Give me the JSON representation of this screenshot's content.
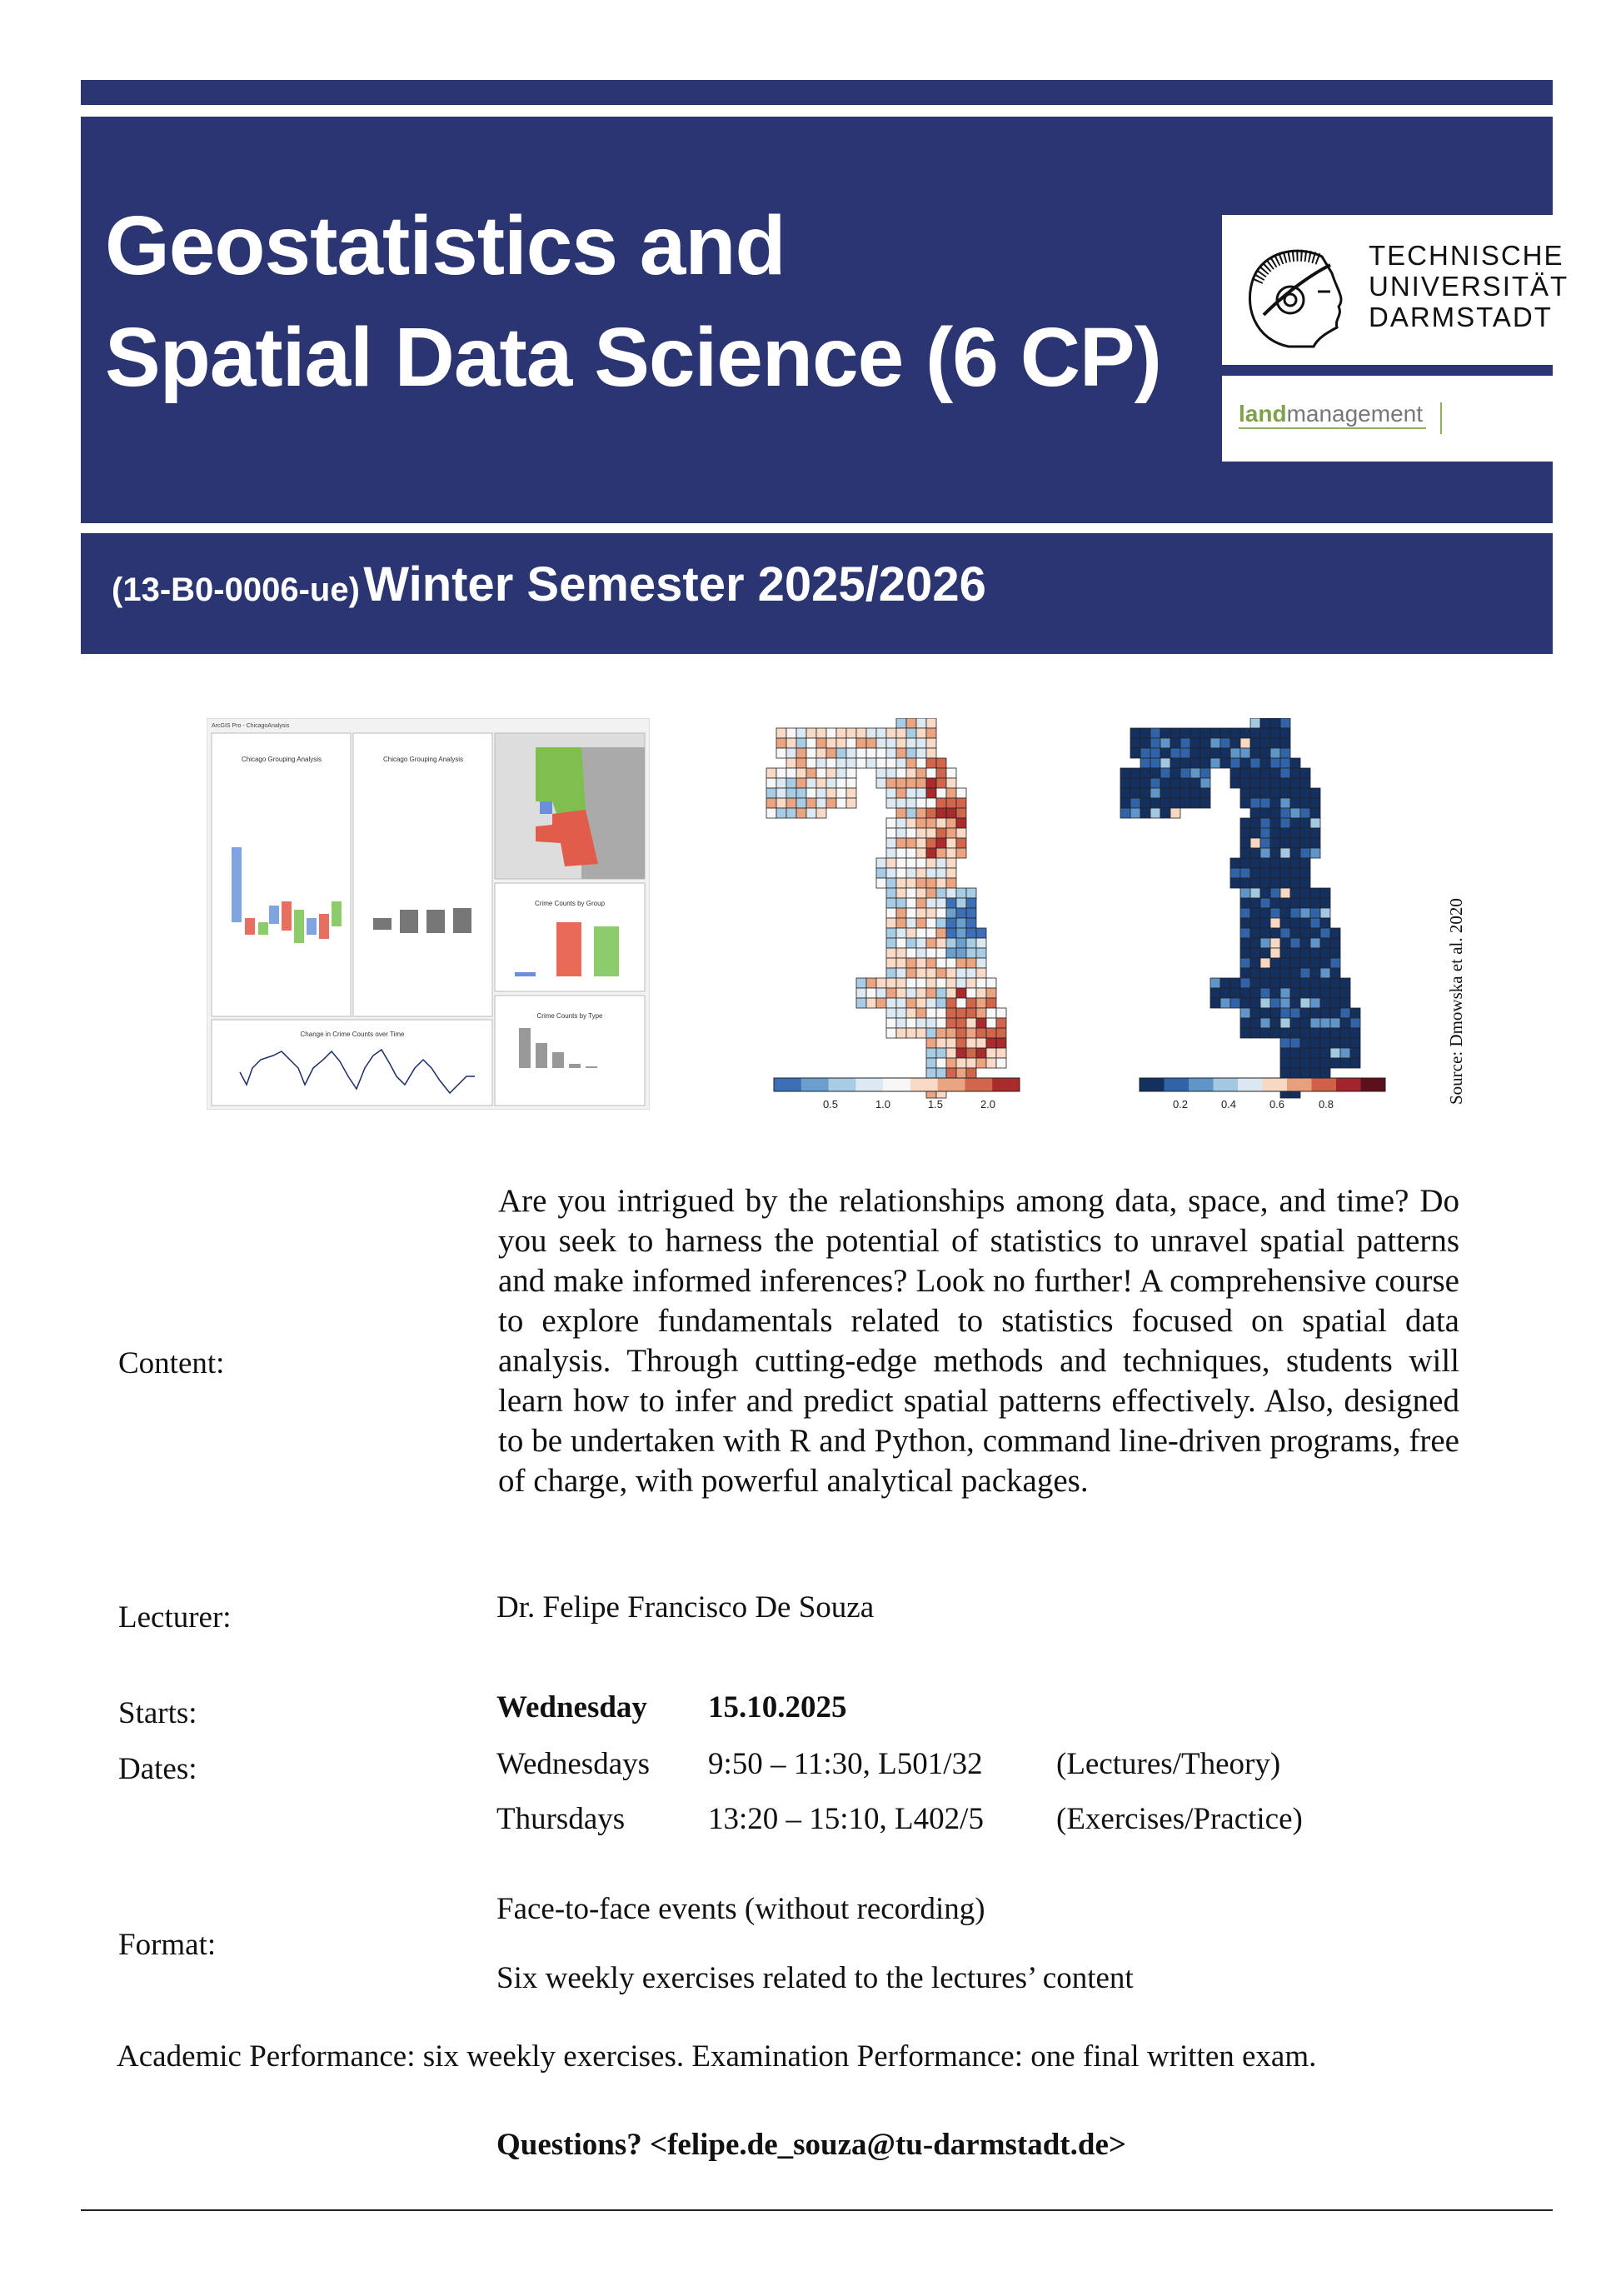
{
  "header": {
    "title_line1": "Geostatistics and",
    "title_line2": "Spatial Data Science (6 CP)",
    "course_code": "(13-B0-0006-ue)",
    "semester": "Winter Semester 2025/2026",
    "brand_color": "#2a3572"
  },
  "logos": {
    "university": [
      "TECHNISCHE",
      "UNIVERSITÄT",
      "DARMSTADT"
    ],
    "department_bold": "land",
    "department_rest": "management"
  },
  "figures": {
    "dashboard": {
      "window_title": "ArcGIS Pro - ChicagoAnalysis",
      "panel_titles": [
        "Chicago Grouping Analysis",
        "Chicago Grouping Analysis",
        "Crime Counts by Group",
        "Crime Counts by Type",
        "Change in Crime Counts over Time"
      ]
    },
    "map1_colorbar_ticks": [
      "0.5",
      "1.0",
      "1.5",
      "2.0"
    ],
    "map2_colorbar_ticks": [
      "0.2",
      "0.4",
      "0.6",
      "0.8"
    ],
    "source": "Source: Dmowska et al. 2020"
  },
  "content": {
    "label": "Content:",
    "text": "Are you intrigued by the relationships among data, space, and time? Do you seek to harness the potential of statistics to unravel spatial patterns and make informed inferences? Look no further! A comprehensive course to explore fundamentals related to statistics focused on spatial data analysis. Through cutting-edge methods and techniques, students will learn how to infer and predict spatial patterns effectively. Also, designed to be undertaken with R and Python, command line-driven programs, free of charge, with powerful analytical packages."
  },
  "lecturer": {
    "label": "Lecturer:",
    "name": "Dr. Felipe Francisco De Souza"
  },
  "starts": {
    "label": "Starts:",
    "day": "Wednesday",
    "date": "15.10.2025"
  },
  "dates": {
    "label": "Dates:",
    "rows": [
      {
        "day": "Wednesdays",
        "time": "9:50 – 11:30, L501/32",
        "type": "(Lectures/Theory)"
      },
      {
        "day": "Thursdays",
        "time": "13:20 – 15:10, L402/5",
        "type": "(Exercises/Practice)"
      }
    ]
  },
  "format": {
    "label": "Format:",
    "lines": [
      "Face-to-face events (without recording)",
      "Six weekly exercises related to the lectures’ content"
    ]
  },
  "performance": "Academic Performance: six weekly exercises. Examination Performance: one final written exam.",
  "questions": {
    "prefix": "Questions?",
    "email": "<felipe.de_souza@tu-darmstadt.de>"
  }
}
